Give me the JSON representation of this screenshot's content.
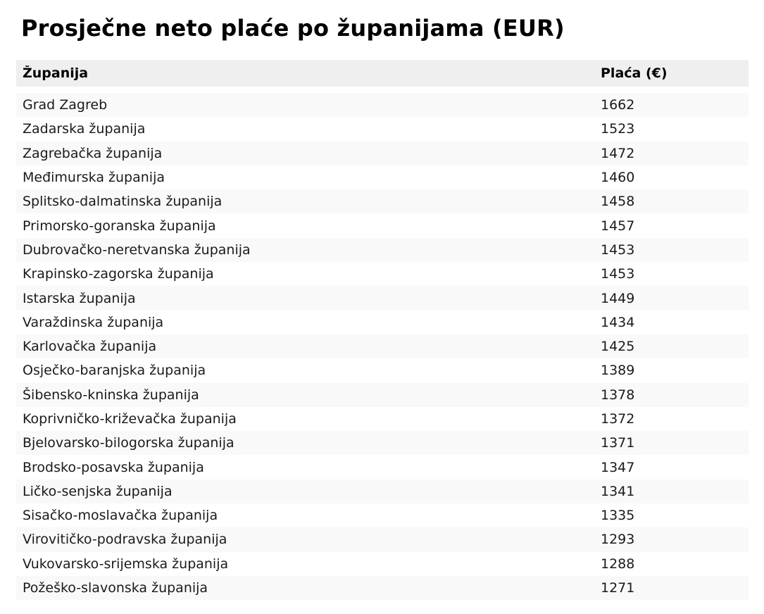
{
  "page": {
    "title": "Prosječne neto plaće po županijama (EUR)"
  },
  "table": {
    "columns": [
      "Županija",
      "Plaća (€)"
    ],
    "rows": [
      {
        "zupanija": "Grad Zagreb",
        "placa": "1662"
      },
      {
        "zupanija": "Zadarska županija",
        "placa": "1523"
      },
      {
        "zupanija": "Zagrebačka županija",
        "placa": "1472"
      },
      {
        "zupanija": "Međimurska županija",
        "placa": "1460"
      },
      {
        "zupanija": "Splitsko-dalmatinska županija",
        "placa": "1458"
      },
      {
        "zupanija": "Primorsko-goranska županija",
        "placa": "1457"
      },
      {
        "zupanija": "Dubrovačko-neretvanska županija",
        "placa": "1453"
      },
      {
        "zupanija": "Krapinsko-zagorska županija",
        "placa": "1453"
      },
      {
        "zupanija": "Istarska županija",
        "placa": "1449"
      },
      {
        "zupanija": "Varaždinska županija",
        "placa": "1434"
      },
      {
        "zupanija": "Karlovačka županija",
        "placa": "1425"
      },
      {
        "zupanija": "Osječko-baranjska županija",
        "placa": "1389"
      },
      {
        "zupanija": "Šibensko-kninska županija",
        "placa": "1378"
      },
      {
        "zupanija": "Koprivničko-križevačka županija",
        "placa": "1372"
      },
      {
        "zupanija": "Bjelovarsko-bilogorska županija",
        "placa": "1371"
      },
      {
        "zupanija": "Brodsko-posavska županija",
        "placa": "1347"
      },
      {
        "zupanija": "Ličko-senjska županija",
        "placa": "1341"
      },
      {
        "zupanija": "Sisačko-moslavačka županija",
        "placa": "1335"
      },
      {
        "zupanija": "Virovitičko-podravska županija",
        "placa": "1293"
      },
      {
        "zupanija": "Vukovarsko-srijemska županija",
        "placa": "1288"
      },
      {
        "zupanija": "Požeško-slavonska županija",
        "placa": "1271"
      }
    ]
  },
  "colors": {
    "header_bg": "#efefef",
    "row_alt_bg": "#f9f9f9",
    "row_bg": "#ffffff",
    "title_text": "#000000",
    "body_text": "#1a1a1a"
  },
  "chart_data": {
    "type": "table",
    "title": "Prosječne neto plaće po županijama (EUR)",
    "columns": [
      "Županija",
      "Plaća (€)"
    ],
    "categories": [
      "Grad Zagreb",
      "Zadarska županija",
      "Zagrebačka županija",
      "Međimurska županija",
      "Splitsko-dalmatinska županija",
      "Primorsko-goranska županija",
      "Dubrovačko-neretvanska županija",
      "Krapinsko-zagorska županija",
      "Istarska županija",
      "Varaždinska županija",
      "Karlovačka županija",
      "Osječko-baranjska županija",
      "Šibensko-kninska županija",
      "Koprivničko-križevačka županija",
      "Bjelovarsko-bilogorska županija",
      "Brodsko-posavska županija",
      "Ličko-senjska županija",
      "Sisačko-moslavačka županija",
      "Virovitičko-podravska županija",
      "Vukovarsko-srijemska županija",
      "Požeško-slavonska županija"
    ],
    "values": [
      1662,
      1523,
      1472,
      1460,
      1458,
      1457,
      1453,
      1453,
      1449,
      1434,
      1425,
      1389,
      1378,
      1372,
      1371,
      1347,
      1341,
      1335,
      1293,
      1288,
      1271
    ]
  }
}
